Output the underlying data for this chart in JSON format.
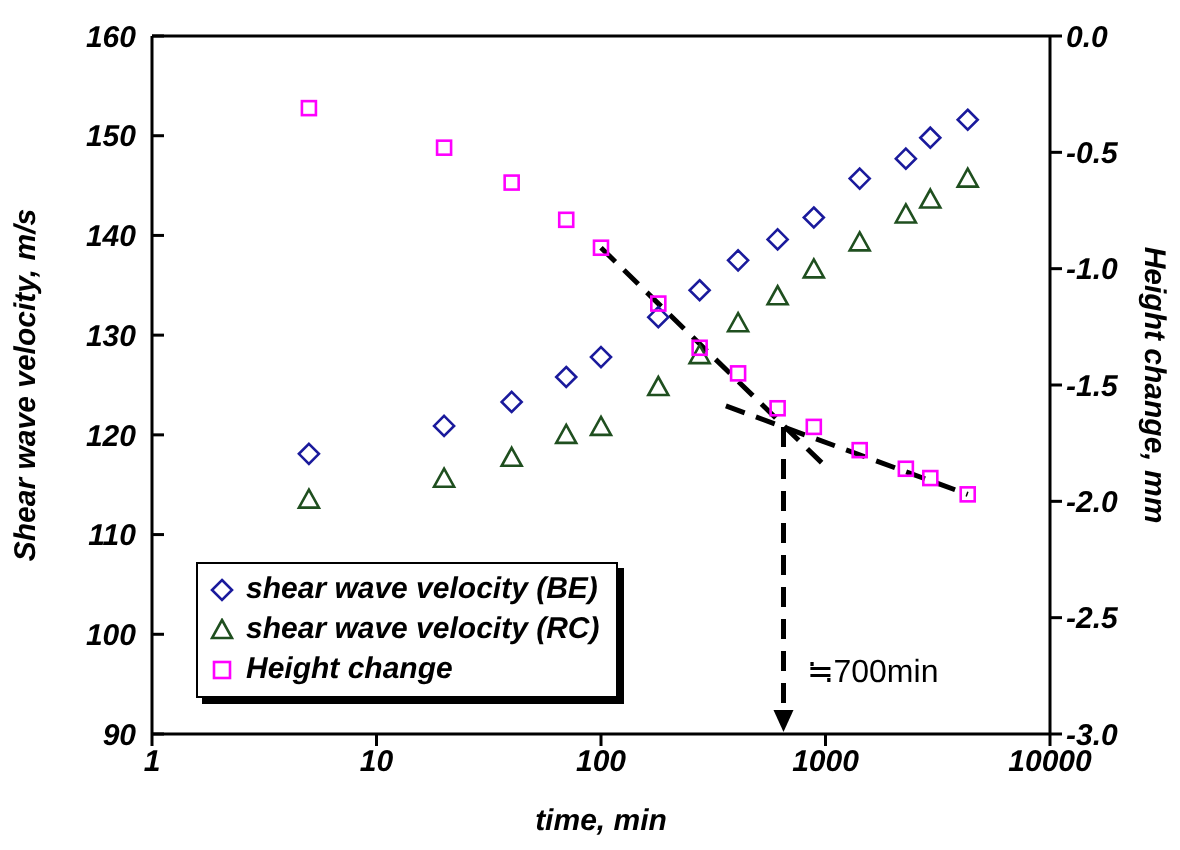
{
  "chart_data": {
    "type": "scatter",
    "xlabel": "time, min",
    "ylabel": "Shear wave velocity, m/s",
    "y2label": "Height change, mm",
    "log": "x",
    "xlim": [
      1,
      10000
    ],
    "xticks": [
      1,
      10,
      100,
      1000,
      10000
    ],
    "ylim": [
      90,
      160
    ],
    "yticks": [
      90,
      100,
      110,
      120,
      130,
      140,
      150,
      160
    ],
    "y2lim": [
      -3,
      0
    ],
    "y2ticks": [
      {
        "value": -3,
        "label": "-3.0"
      },
      {
        "value": -2.5,
        "label": "-2.5"
      },
      {
        "value": -2,
        "label": "-2.0"
      },
      {
        "value": -1.5,
        "label": "-1.5"
      },
      {
        "value": -1,
        "label": "-1.0"
      },
      {
        "value": -0.5,
        "label": "-0.5"
      },
      {
        "value": 0,
        "label": "0.0"
      }
    ],
    "grid": false,
    "legend": "bottom left",
    "x": [
      5,
      20,
      40,
      70,
      100,
      180,
      275,
      408,
      612,
      887,
      1420,
      2280,
      2930,
      4300
    ],
    "series": [
      {
        "name": "shear wave velocity (BE)",
        "color": "#1a1a9c",
        "marker": "diamond",
        "values": [
          118.1,
          120.9,
          123.3,
          125.8,
          127.8,
          131.8,
          134.5,
          137.5,
          139.6,
          141.8,
          145.7,
          147.7,
          149.8,
          151.6
        ]
      },
      {
        "name": "shear wave velocity (RC)",
        "color": "#1f4f1f",
        "marker": "triangle",
        "values": [
          113.5,
          115.6,
          117.7,
          120.0,
          120.8,
          124.8,
          128.0,
          131.2,
          133.9,
          136.6,
          139.3,
          142.1,
          143.6,
          145.7
        ]
      },
      {
        "name": "Height change",
        "color": "#ff00ff",
        "marker": "square",
        "axis": "y2",
        "values": [
          -0.31,
          -0.48,
          -0.63,
          -0.79,
          -0.91,
          -1.15,
          -1.34,
          -1.45,
          -1.6,
          -1.68,
          -1.78,
          -1.86,
          -1.9,
          -1.97
        ]
      },
      {
        "type": "line",
        "color": "#000000",
        "marker": "none",
        "line_style": "dashed",
        "axis": "y2",
        "x": [
          100,
          1000
        ],
        "values": [
          -0.91,
          -1.85
        ]
      },
      {
        "type": "line",
        "color": "#000000",
        "marker": "none",
        "line_style": "dashed",
        "axis": "y2",
        "x": [
          360,
          4300
        ],
        "values": [
          -1.59,
          -1.97
        ]
      }
    ],
    "ref_lines": [
      {
        "axis": "x",
        "value": 650,
        "label": "≒700min",
        "line_style": "dashed",
        "color": "#000000"
      }
    ]
  }
}
